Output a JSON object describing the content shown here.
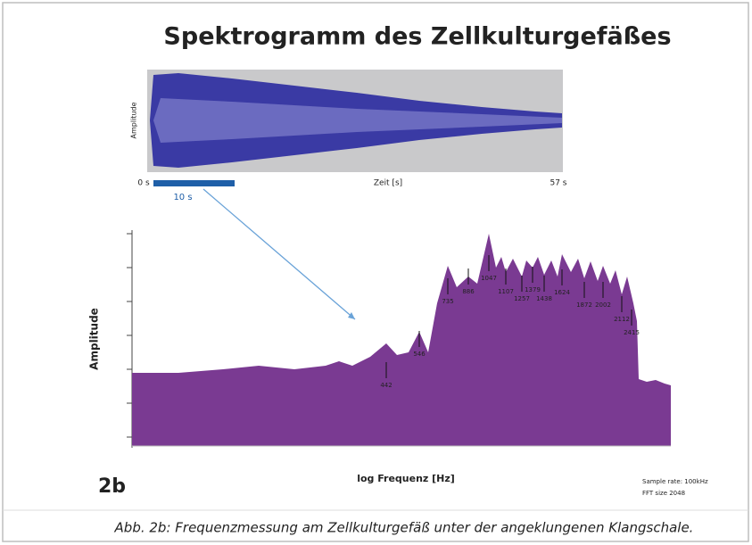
{
  "title": "Spektrogramm des Zellkulturgefäßes",
  "waveform": {
    "y_label": "Amplitude",
    "start_label": "0 s",
    "window_label": "10 s",
    "x_label": "Zeit [s]",
    "end_label": "57 s"
  },
  "spectrum": {
    "y_label": "Amplitude",
    "x_label": "log Frequenz [Hz]",
    "peak_labels": [
      "442",
      "546",
      "735",
      "886",
      "1047",
      "1107",
      "1257",
      "1379",
      "1438",
      "1624",
      "1872",
      "2002",
      "2112",
      "2415"
    ],
    "panel_label": "2b",
    "notes": [
      "Sample rate: 100kHz",
      "FFT size 2048"
    ]
  },
  "caption": "Abb. 2b: Frequenzmessung am Zellkulturgefäß unter der angeklungenen Klangschale."
}
